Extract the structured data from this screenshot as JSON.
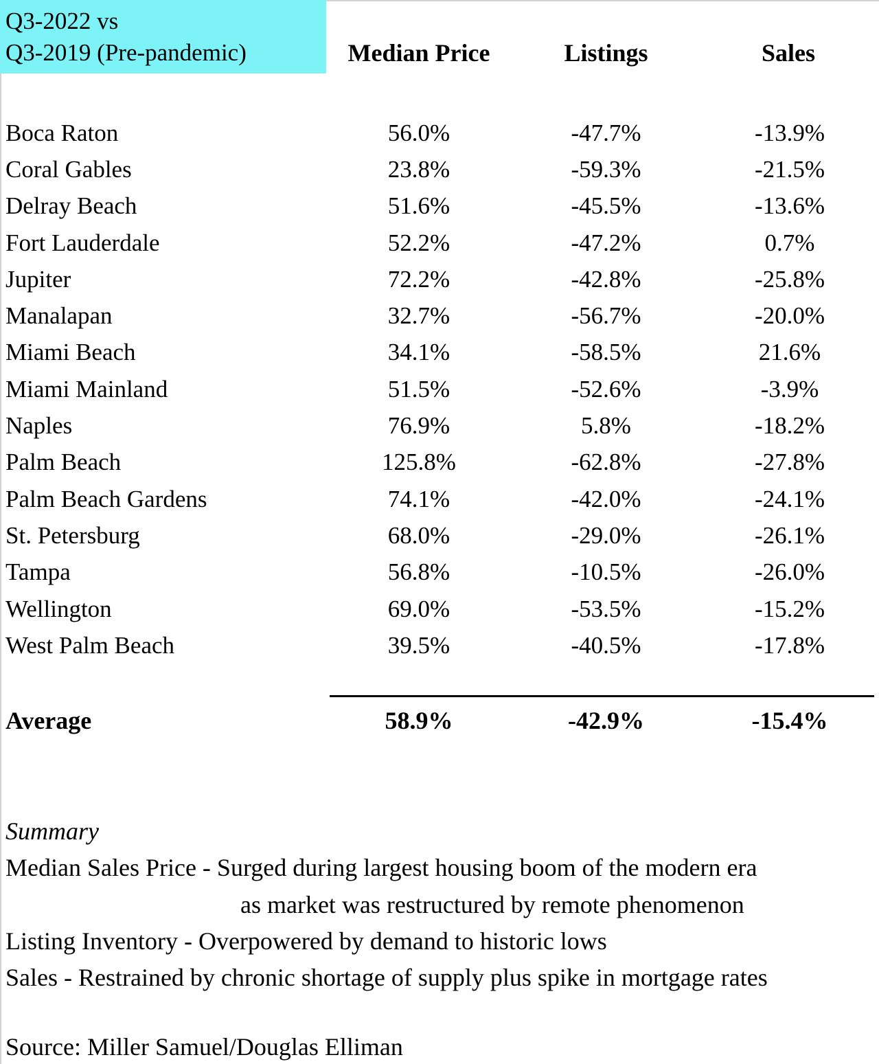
{
  "header": {
    "period_line1": "Q3-2022 vs",
    "period_line2": "Q3-2019 (Pre-pandemic)",
    "highlight_color": "#7DF2F7",
    "columns": {
      "median_price": "Median Price",
      "listings": "Listings",
      "sales": "Sales"
    }
  },
  "table": {
    "rows": [
      {
        "city": "Boca Raton",
        "median_price": "56.0%",
        "listings": "-47.7%",
        "sales": "-13.9%"
      },
      {
        "city": "Coral Gables",
        "median_price": "23.8%",
        "listings": "-59.3%",
        "sales": "-21.5%"
      },
      {
        "city": "Delray Beach",
        "median_price": "51.6%",
        "listings": "-45.5%",
        "sales": "-13.6%"
      },
      {
        "city": "Fort Lauderdale",
        "median_price": "52.2%",
        "listings": "-47.2%",
        "sales": "0.7%"
      },
      {
        "city": "Jupiter",
        "median_price": "72.2%",
        "listings": "-42.8%",
        "sales": "-25.8%"
      },
      {
        "city": "Manalapan",
        "median_price": "32.7%",
        "listings": "-56.7%",
        "sales": "-20.0%"
      },
      {
        "city": "Miami Beach",
        "median_price": "34.1%",
        "listings": "-58.5%",
        "sales": "21.6%"
      },
      {
        "city": "Miami Mainland",
        "median_price": "51.5%",
        "listings": "-52.6%",
        "sales": "-3.9%"
      },
      {
        "city": "Naples",
        "median_price": "76.9%",
        "listings": "5.8%",
        "sales": "-18.2%"
      },
      {
        "city": "Palm Beach",
        "median_price": "125.8%",
        "listings": "-62.8%",
        "sales": "-27.8%"
      },
      {
        "city": "Palm Beach Gardens",
        "median_price": "74.1%",
        "listings": "-42.0%",
        "sales": "-24.1%"
      },
      {
        "city": "St. Petersburg",
        "median_price": "68.0%",
        "listings": "-29.0%",
        "sales": "-26.1%"
      },
      {
        "city": "Tampa",
        "median_price": "56.8%",
        "listings": "-10.5%",
        "sales": "-26.0%"
      },
      {
        "city": "Wellington",
        "median_price": "69.0%",
        "listings": "-53.5%",
        "sales": "-15.2%"
      },
      {
        "city": "West Palm Beach",
        "median_price": "39.5%",
        "listings": "-40.5%",
        "sales": "-17.8%"
      }
    ],
    "average": {
      "label": "Average",
      "median_price": "58.9%",
      "listings": "-42.9%",
      "sales": "-15.4%"
    }
  },
  "summary": {
    "title": "Summary",
    "lines": [
      {
        "text": "Median Sales Price - Surged during largest housing boom of the modern era",
        "indented": false
      },
      {
        "text": "as market was restructured by remote phenomenon",
        "indented": true
      },
      {
        "text": "Listing Inventory - Overpowered by demand to historic lows",
        "indented": false
      },
      {
        "text": "Sales - Restrained by chronic shortage of supply plus spike in mortgage rates",
        "indented": false
      }
    ]
  },
  "source": "Source: Miller Samuel/Douglas Elliman"
}
